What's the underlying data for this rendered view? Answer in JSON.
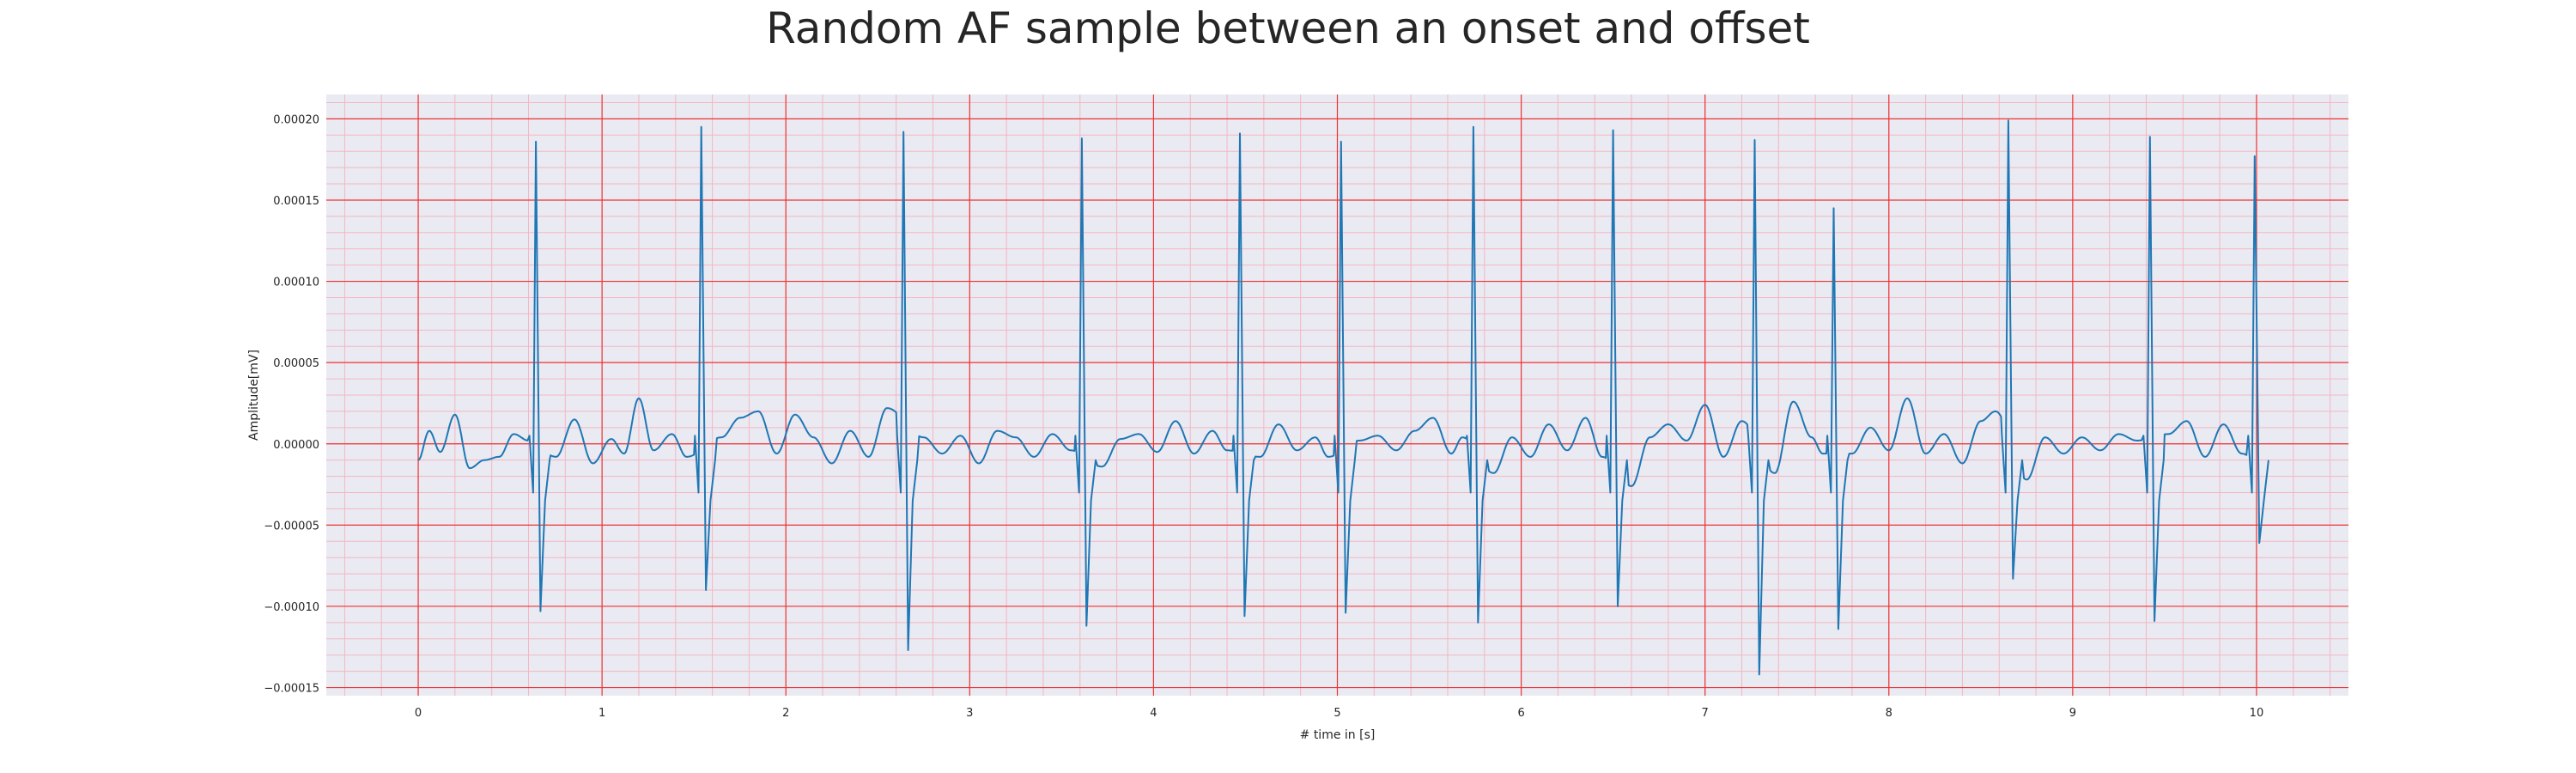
{
  "chart_data": {
    "type": "line",
    "title": "Random AF sample between an onset and offset",
    "xlabel": "# time in [s]",
    "ylabel": "Amplitude[mV]",
    "xlim": [
      -0.5,
      10.5
    ],
    "ylim": [
      -0.000155,
      0.000215
    ],
    "x_ticks": [
      0,
      1,
      2,
      3,
      4,
      5,
      6,
      7,
      8,
      9,
      10
    ],
    "x_tick_labels": [
      "0",
      "1",
      "2",
      "3",
      "4",
      "5",
      "6",
      "7",
      "8",
      "9",
      "10"
    ],
    "y_ticks": [
      -0.00015,
      -0.0001,
      -5e-05,
      0,
      5e-05,
      0.0001,
      0.00015,
      0.0002
    ],
    "y_tick_labels": [
      "−0.00015",
      "−0.00010",
      "−0.00005",
      "0.00000",
      "0.00005",
      "0.00010",
      "0.00015",
      "0.00020"
    ],
    "grid": {
      "major": true,
      "minor": true,
      "major_color": "#ee3333",
      "minor_color": "#f4b6c2"
    },
    "background_color": "#eaeaf2",
    "line_color": "#1f77b4",
    "qrs_complexes": [
      {
        "t": 0.64,
        "peak": 0.000186,
        "trough": -0.000103
      },
      {
        "t": 1.54,
        "peak": 0.000195,
        "trough": -9e-05
      },
      {
        "t": 2.64,
        "peak": 0.000192,
        "trough": -0.000127
      },
      {
        "t": 3.61,
        "peak": 0.000188,
        "trough": -0.000112
      },
      {
        "t": 4.47,
        "peak": 0.000191,
        "trough": -0.000106
      },
      {
        "t": 5.02,
        "peak": 0.000186,
        "trough": -0.000104
      },
      {
        "t": 5.74,
        "peak": 0.000195,
        "trough": -0.00011
      },
      {
        "t": 6.5,
        "peak": 0.000193,
        "trough": -0.0001
      },
      {
        "t": 7.27,
        "peak": 0.000187,
        "trough": -0.000142
      },
      {
        "t": 7.7,
        "peak": 0.000145,
        "trough": -0.000114
      },
      {
        "t": 8.65,
        "peak": 0.000199,
        "trough": -8.3e-05
      },
      {
        "t": 9.42,
        "peak": 0.000189,
        "trough": -0.000109
      },
      {
        "t": 9.99,
        "peak": 0.000177,
        "trough": -6.1e-05
      }
    ],
    "baseline_samples": {
      "x": [
        0.0,
        0.06,
        0.12,
        0.2,
        0.28,
        0.36,
        0.44,
        0.52,
        0.6,
        0.75,
        0.85,
        0.95,
        1.05,
        1.12,
        1.2,
        1.28,
        1.38,
        1.46,
        1.65,
        1.75,
        1.85,
        1.95,
        2.05,
        2.15,
        2.25,
        2.35,
        2.45,
        2.55,
        2.75,
        2.85,
        2.95,
        3.05,
        3.15,
        3.25,
        3.35,
        3.45,
        3.55,
        3.72,
        3.82,
        3.92,
        4.02,
        4.12,
        4.22,
        4.32,
        4.4,
        4.58,
        4.68,
        4.78,
        4.88,
        4.95,
        5.12,
        5.22,
        5.32,
        5.42,
        5.52,
        5.62,
        5.68,
        5.85,
        5.95,
        6.05,
        6.15,
        6.25,
        6.35,
        6.44,
        6.6,
        6.7,
        6.8,
        6.9,
        7.0,
        7.1,
        7.2,
        7.38,
        7.48,
        7.58,
        7.64,
        7.8,
        7.9,
        8.0,
        8.1,
        8.2,
        8.3,
        8.4,
        8.5,
        8.58,
        8.75,
        8.85,
        8.95,
        9.05,
        9.15,
        9.25,
        9.35,
        9.52,
        9.62,
        9.72,
        9.82,
        9.92,
        10.0
      ],
      "y": [
        -1e-05,
        8e-06,
        -5e-06,
        1.8e-05,
        -1.5e-05,
        -1e-05,
        -8e-06,
        6e-06,
        2e-06,
        -8e-06,
        1.5e-05,
        -1.2e-05,
        3e-06,
        -6e-06,
        2.8e-05,
        -4e-06,
        6e-06,
        -8e-06,
        4e-06,
        1.6e-05,
        2e-05,
        -6e-06,
        1.8e-05,
        4e-06,
        -1.2e-05,
        8e-06,
        -8e-06,
        2.2e-05,
        4e-06,
        -6e-06,
        5e-06,
        -1.2e-05,
        8e-06,
        4e-06,
        -8e-06,
        6e-06,
        -4e-06,
        -1.4e-05,
        3e-06,
        6e-06,
        -5e-06,
        1.4e-05,
        -6e-06,
        8e-06,
        -4e-06,
        -8e-06,
        1.2e-05,
        -4e-06,
        4e-06,
        -8e-06,
        2e-06,
        5e-06,
        -4e-06,
        8e-06,
        1.6e-05,
        -6e-06,
        4e-06,
        -1.8e-05,
        4e-06,
        -8e-06,
        1.2e-05,
        -4e-06,
        1.6e-05,
        -8e-06,
        -2.6e-05,
        4e-06,
        1.2e-05,
        2e-06,
        2.4e-05,
        -8e-06,
        1.4e-05,
        -1.8e-05,
        2.6e-05,
        4e-06,
        -6e-06,
        -6e-06,
        1e-05,
        -4e-06,
        2.8e-05,
        -6e-06,
        6e-06,
        -1.2e-05,
        1.4e-05,
        2e-05,
        -2.2e-05,
        4e-06,
        -6e-06,
        4e-06,
        -4e-06,
        6e-06,
        2e-06,
        6e-06,
        1.4e-05,
        -8e-06,
        1.2e-05,
        -6e-06,
        -1e-05
      ]
    }
  }
}
